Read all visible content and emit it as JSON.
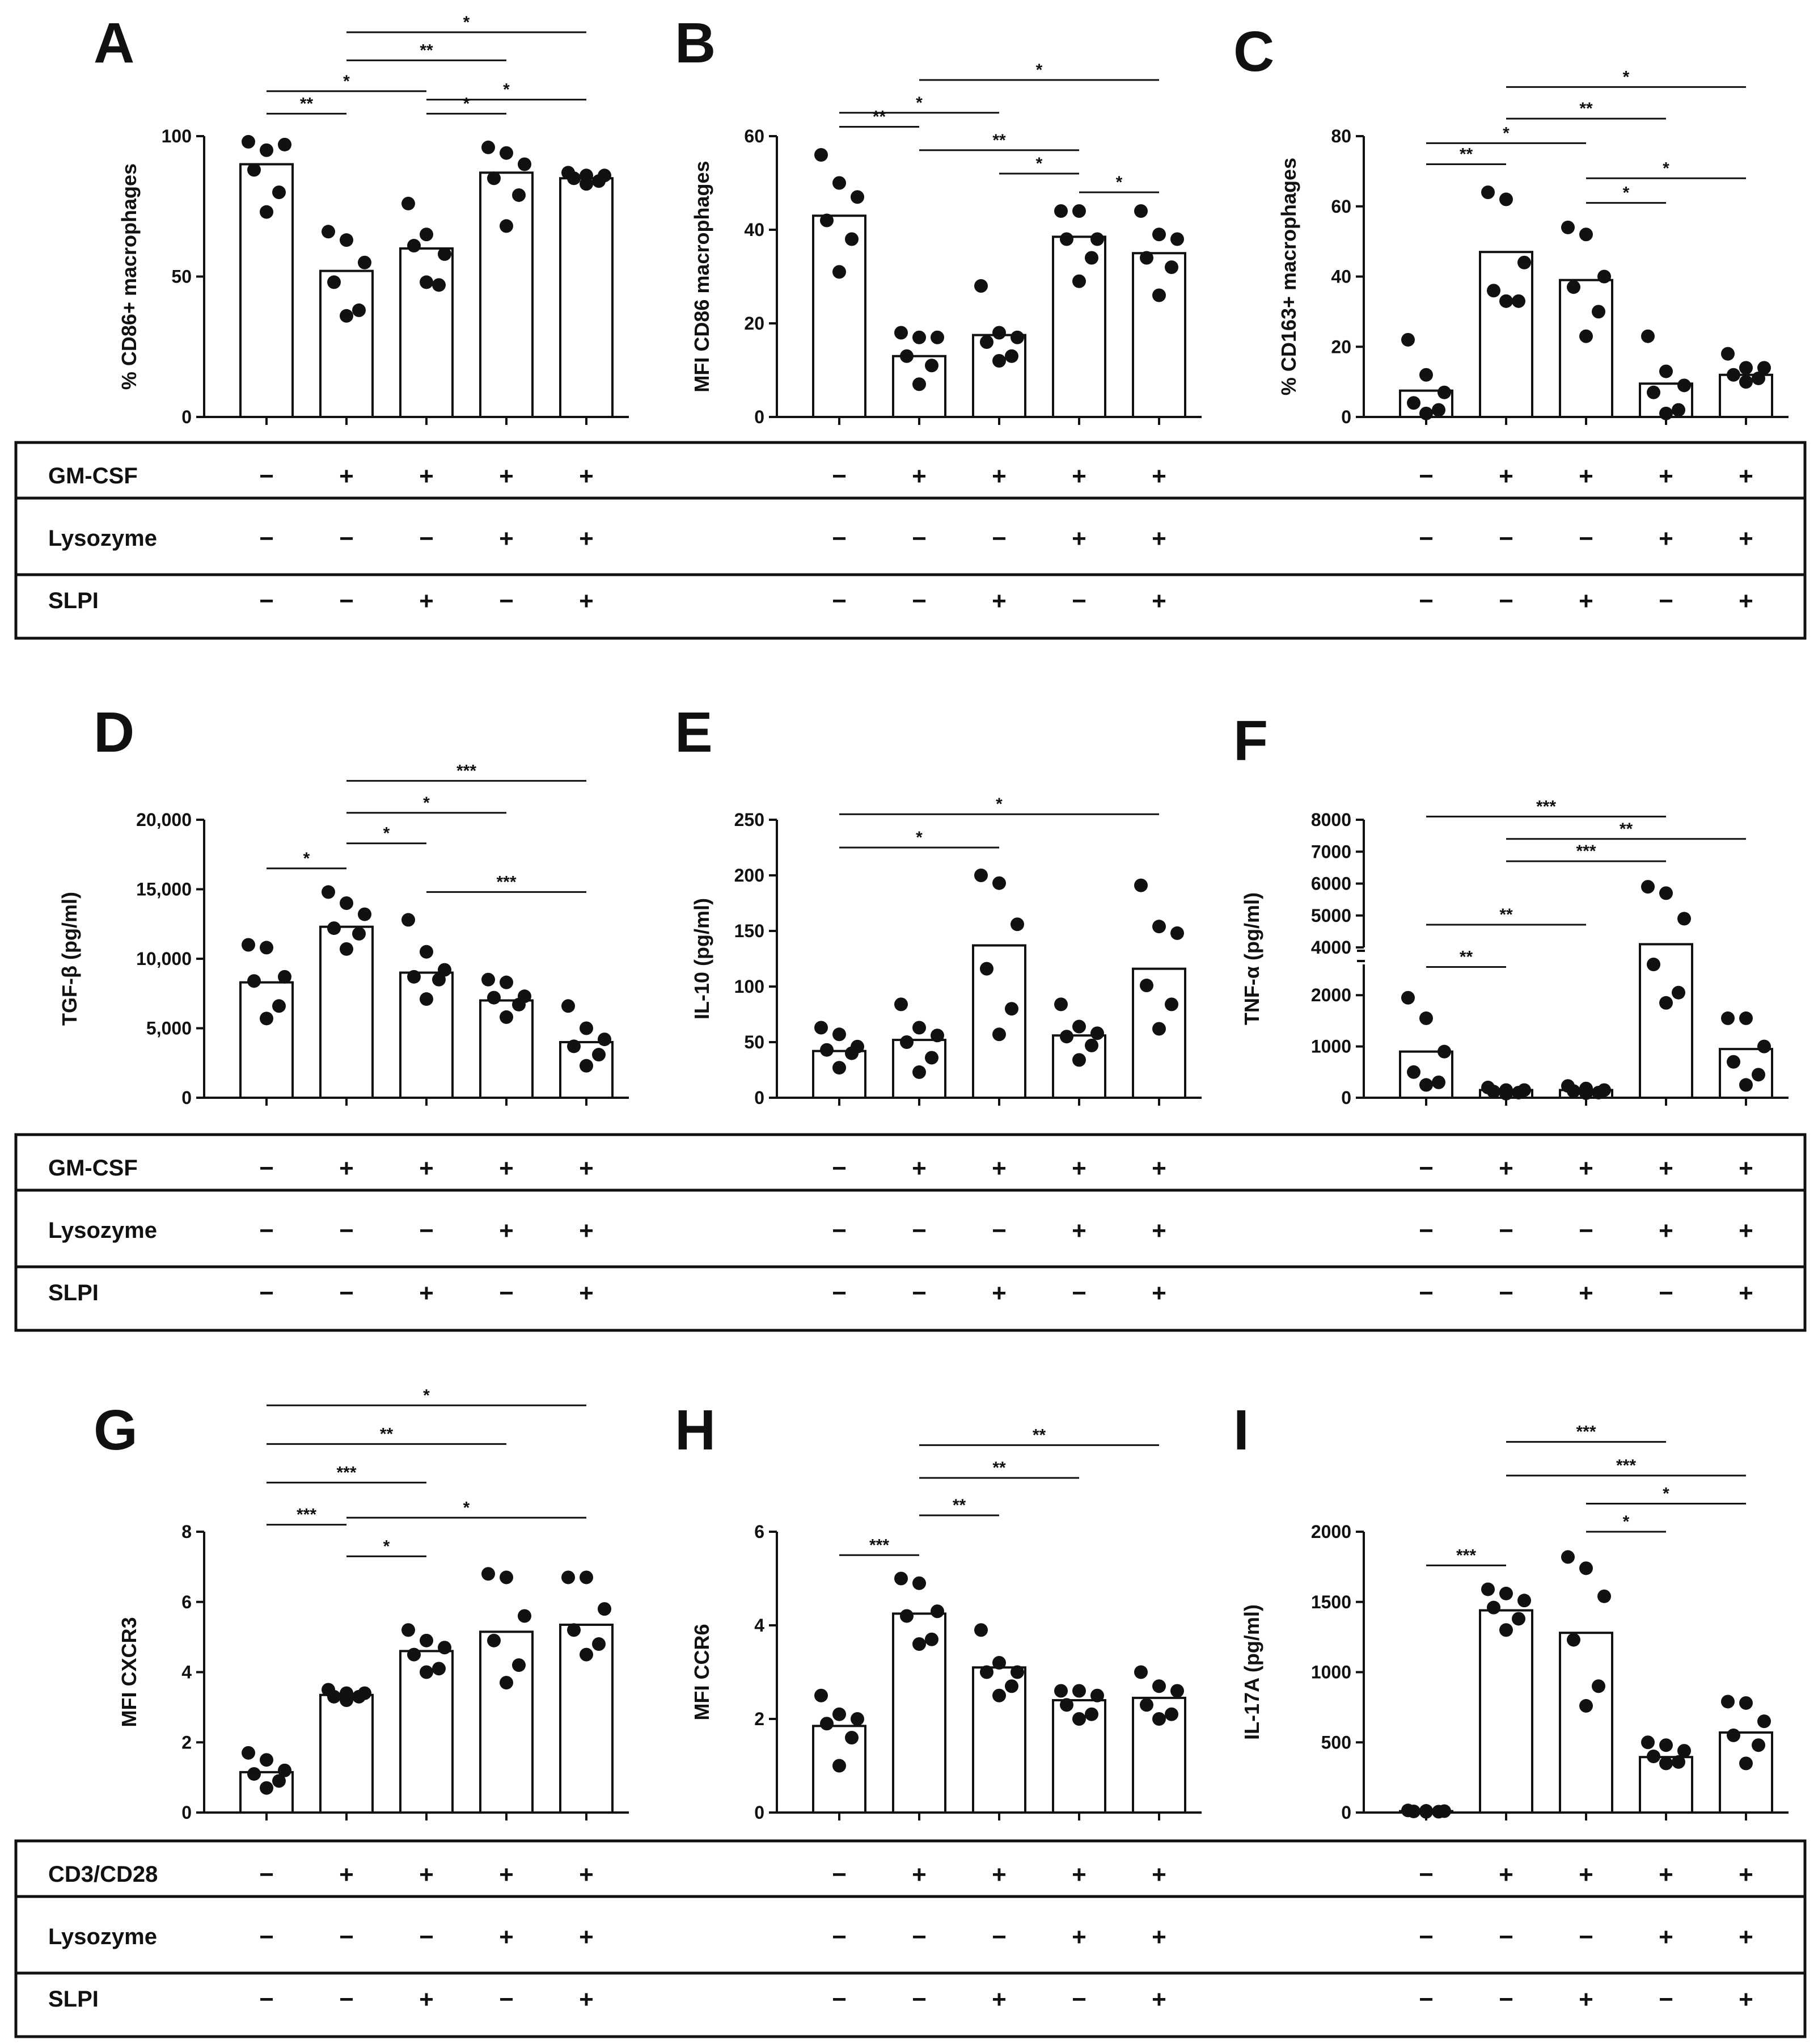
{
  "chart_data": [
    {
      "panel": "A",
      "type": "bar",
      "ylabel": "% CD86+ macrophages",
      "ylim": [
        0,
        100
      ],
      "yticks": [
        0,
        50,
        100
      ],
      "bar_values": [
        90,
        52,
        60,
        87,
        85
      ],
      "points": [
        [
          98,
          95,
          97,
          88,
          80,
          73
        ],
        [
          66,
          63,
          55,
          48,
          38,
          36
        ],
        [
          76,
          65,
          58,
          61,
          47,
          48
        ],
        [
          96,
          94,
          90,
          85,
          79,
          68
        ],
        [
          87,
          86,
          86,
          85,
          84,
          83
        ]
      ],
      "significance": [
        {
          "from": 0,
          "to": 1,
          "label": "**",
          "y": 108
        },
        {
          "from": 0,
          "to": 2,
          "label": "*",
          "y": 116
        },
        {
          "from": 2,
          "to": 3,
          "label": "*",
          "y": 108
        },
        {
          "from": 2,
          "to": 4,
          "label": "*",
          "y": 113
        },
        {
          "from": 1,
          "to": 3,
          "label": "**",
          "y": 127
        },
        {
          "from": 1,
          "to": 4,
          "label": "*",
          "y": 137
        }
      ]
    },
    {
      "panel": "B",
      "type": "bar",
      "ylabel": "MFI CD86 macrophages",
      "ylim": [
        0,
        60
      ],
      "yticks": [
        0,
        20,
        40,
        60
      ],
      "bar_values": [
        43,
        13,
        17.5,
        38.5,
        35
      ],
      "points": [
        [
          56,
          50,
          47,
          42,
          38,
          31
        ],
        [
          18,
          17,
          17,
          13,
          11,
          7
        ],
        [
          28,
          18,
          17,
          16,
          13,
          12
        ],
        [
          44,
          44,
          38,
          38,
          34,
          29
        ],
        [
          44,
          39,
          38,
          34,
          32,
          26
        ]
      ],
      "significance": [
        {
          "from": 0,
          "to": 1,
          "label": "**",
          "y": 62
        },
        {
          "from": 0,
          "to": 2,
          "label": "*",
          "y": 65
        },
        {
          "from": 3,
          "to": 4,
          "label": "*",
          "y": 48
        },
        {
          "from": 2,
          "to": 3,
          "label": "*",
          "y": 52
        },
        {
          "from": 1,
          "to": 3,
          "label": "**",
          "y": 57
        },
        {
          "from": 1,
          "to": 4,
          "label": "*",
          "y": 72
        }
      ]
    },
    {
      "panel": "C",
      "type": "bar",
      "ylabel": "% CD163+ macrophages",
      "ylim": [
        0,
        80
      ],
      "yticks": [
        0,
        20,
        40,
        60,
        80
      ],
      "bar_values": [
        7.5,
        47,
        39,
        9.5,
        12
      ],
      "points": [
        [
          22,
          12,
          7,
          4,
          2,
          1
        ],
        [
          64,
          62,
          44,
          36,
          33,
          33
        ],
        [
          54,
          52,
          40,
          37,
          30,
          23
        ],
        [
          23,
          13,
          9,
          7,
          2,
          1
        ],
        [
          18,
          14,
          14,
          12,
          11,
          10
        ]
      ],
      "significance": [
        {
          "from": 0,
          "to": 1,
          "label": "**",
          "y": 72
        },
        {
          "from": 0,
          "to": 2,
          "label": "*",
          "y": 78
        },
        {
          "from": 2,
          "to": 3,
          "label": "*",
          "y": 61
        },
        {
          "from": 2,
          "to": 4,
          "label": "*",
          "y": 68
        },
        {
          "from": 1,
          "to": 3,
          "label": "**",
          "y": 85
        },
        {
          "from": 1,
          "to": 4,
          "label": "*",
          "y": 94
        }
      ]
    },
    {
      "panel": "D",
      "type": "bar",
      "ylabel": "TGF-β (pg/ml)",
      "ylim": [
        0,
        20000
      ],
      "yticks": [
        0,
        5000,
        10000,
        15000,
        20000
      ],
      "ytick_labels": [
        "0",
        "5,000",
        "10,000",
        "15,000",
        "20,000"
      ],
      "bar_values": [
        8300,
        12300,
        9000,
        7000,
        4000
      ],
      "points": [
        [
          11000,
          10800,
          8700,
          8400,
          6600,
          5700
        ],
        [
          14800,
          14000,
          13200,
          12200,
          11800,
          10700
        ],
        [
          12800,
          10500,
          9200,
          8700,
          8500,
          7100
        ],
        [
          8500,
          8300,
          7300,
          7200,
          6700,
          5800
        ],
        [
          6600,
          5000,
          4200,
          3700,
          3100,
          2300
        ]
      ],
      "significance": [
        {
          "from": 0,
          "to": 1,
          "label": "*",
          "y": 16500
        },
        {
          "from": 1,
          "to": 2,
          "label": "*",
          "y": 18300
        },
        {
          "from": 1,
          "to": 3,
          "label": "*",
          "y": 20500
        },
        {
          "from": 1,
          "to": 4,
          "label": "***",
          "y": 22800
        },
        {
          "from": 2,
          "to": 4,
          "label": "***",
          "y": 14800
        }
      ]
    },
    {
      "panel": "E",
      "type": "bar",
      "ylabel": "IL-10 (pg/ml)",
      "ylim": [
        0,
        250
      ],
      "yticks": [
        0,
        50,
        100,
        150,
        200,
        250
      ],
      "bar_values": [
        42,
        52,
        137,
        56,
        116
      ],
      "points": [
        [
          63,
          57,
          46,
          43,
          40,
          27
        ],
        [
          84,
          63,
          56,
          50,
          36,
          23
        ],
        [
          200,
          193,
          156,
          116,
          80,
          57
        ],
        [
          84,
          64,
          58,
          55,
          47,
          34
        ],
        [
          191,
          154,
          148,
          101,
          84,
          62
        ]
      ],
      "significance": [
        {
          "from": 0,
          "to": 2,
          "label": "*",
          "y": 225
        },
        {
          "from": 0,
          "to": 4,
          "label": "*",
          "y": 255
        }
      ]
    },
    {
      "panel": "F",
      "type": "bar",
      "ylabel": "TNF-α (pg/ml)",
      "broken_axis": true,
      "lower_ylim": [
        0,
        2600
      ],
      "lower_yticks": [
        0,
        1000,
        2000
      ],
      "upper_ylim": [
        4000,
        8000
      ],
      "upper_yticks": [
        4000,
        5000,
        6000,
        7000,
        8000
      ],
      "bar_values": [
        900,
        150,
        150,
        4100,
        950
      ],
      "points": [
        [
          1950,
          1550,
          900,
          500,
          300,
          250
        ],
        [
          200,
          150,
          150,
          120,
          100,
          80
        ],
        [
          230,
          180,
          150,
          130,
          100,
          90
        ],
        [
          5900,
          5700,
          4900,
          3900,
          2050,
          1850
        ],
        [
          1550,
          1550,
          1000,
          700,
          450,
          250
        ]
      ],
      "significance": [
        {
          "from": 0,
          "to": 1,
          "label": "**",
          "bracket": "lower",
          "y": 2550
        },
        {
          "from": 0,
          "to": 2,
          "label": "**",
          "bracket": "upper",
          "y": 4000
        },
        {
          "from": 1,
          "to": 3,
          "label": "***",
          "bracket": "upper",
          "y": 6700
        },
        {
          "from": 1,
          "to": 4,
          "label": "**",
          "bracket": "upper",
          "y": 7400
        },
        {
          "from": 0,
          "to": 3,
          "label": "***",
          "bracket": "upper",
          "y": 8100
        }
      ]
    },
    {
      "panel": "G",
      "type": "bar",
      "ylabel": "MFI CXCR3",
      "ylim": [
        0,
        8
      ],
      "yticks": [
        0,
        2,
        4,
        6,
        8
      ],
      "bar_values": [
        1.15,
        3.35,
        4.6,
        5.15,
        5.35
      ],
      "points": [
        [
          1.7,
          1.5,
          1.2,
          1.1,
          0.9,
          0.7
        ],
        [
          3.5,
          3.4,
          3.4,
          3.3,
          3.3,
          3.2
        ],
        [
          5.2,
          4.9,
          4.7,
          4.5,
          4.1,
          4.0
        ],
        [
          6.8,
          6.7,
          5.6,
          4.9,
          4.2,
          3.7
        ],
        [
          6.7,
          6.7,
          5.8,
          5.2,
          4.8,
          4.5
        ]
      ],
      "significance": [
        {
          "from": 0,
          "to": 1,
          "label": "***",
          "y": 8.2
        },
        {
          "from": 1,
          "to": 2,
          "label": "*",
          "y": 7.3
        },
        {
          "from": 0,
          "to": 2,
          "label": "***",
          "y": 9.4
        },
        {
          "from": 1,
          "to": 4,
          "label": "*",
          "y": 8.4
        },
        {
          "from": 0,
          "to": 3,
          "label": "**",
          "y": 10.5
        },
        {
          "from": 0,
          "to": 4,
          "label": "*",
          "y": 11.6
        }
      ]
    },
    {
      "panel": "H",
      "type": "bar",
      "ylabel": "MFI CCR6",
      "ylim": [
        0,
        6
      ],
      "yticks": [
        0,
        2,
        4,
        6
      ],
      "bar_values": [
        1.85,
        4.25,
        3.1,
        2.4,
        2.45
      ],
      "points": [
        [
          2.5,
          2.1,
          2.0,
          1.9,
          1.6,
          1.0
        ],
        [
          5.0,
          4.9,
          4.3,
          4.2,
          3.7,
          3.6
        ],
        [
          3.9,
          3.2,
          3.0,
          3.0,
          2.7,
          2.5
        ],
        [
          2.6,
          2.6,
          2.5,
          2.3,
          2.1,
          2.0
        ],
        [
          3.0,
          2.7,
          2.6,
          2.3,
          2.1,
          2.0
        ]
      ],
      "significance": [
        {
          "from": 0,
          "to": 1,
          "label": "***",
          "y": 5.5
        },
        {
          "from": 1,
          "to": 2,
          "label": "**",
          "y": 6.35
        },
        {
          "from": 1,
          "to": 3,
          "label": "**",
          "y": 7.15
        },
        {
          "from": 1,
          "to": 4,
          "label": "**",
          "y": 7.85
        }
      ]
    },
    {
      "panel": "I",
      "type": "bar",
      "ylabel": "IL-17A (pg/ml)",
      "ylim": [
        0,
        2000
      ],
      "yticks": [
        0,
        500,
        1000,
        1500,
        2000
      ],
      "bar_values": [
        10,
        1440,
        1280,
        395,
        570
      ],
      "points": [
        [
          15,
          12,
          10,
          8,
          6,
          5
        ],
        [
          1590,
          1560,
          1510,
          1460,
          1380,
          1300
        ],
        [
          1820,
          1740,
          1540,
          1230,
          900,
          760
        ],
        [
          500,
          480,
          440,
          400,
          360,
          350
        ],
        [
          790,
          780,
          650,
          550,
          480,
          350
        ]
      ],
      "significance": [
        {
          "from": 0,
          "to": 1,
          "label": "***",
          "y": 1760
        },
        {
          "from": 2,
          "to": 3,
          "label": "*",
          "y": 2000
        },
        {
          "from": 2,
          "to": 4,
          "label": "*",
          "y": 2200
        },
        {
          "from": 1,
          "to": 4,
          "label": "***",
          "y": 2400
        },
        {
          "from": 1,
          "to": 3,
          "label": "***",
          "y": 2640
        }
      ]
    }
  ],
  "condition_tables": [
    {
      "rows": [
        {
          "label": "GM-CSF",
          "marks": [
            "−",
            "+",
            "+",
            "+",
            "+"
          ]
        },
        {
          "label": "Lysozyme",
          "marks": [
            "−",
            "−",
            "−",
            "+",
            "+"
          ]
        },
        {
          "label": "SLPI",
          "marks": [
            "−",
            "−",
            "+",
            "−",
            "+"
          ]
        }
      ]
    },
    {
      "rows": [
        {
          "label": "GM-CSF",
          "marks": [
            "−",
            "+",
            "+",
            "+",
            "+"
          ]
        },
        {
          "label": "Lysozyme",
          "marks": [
            "−",
            "−",
            "−",
            "+",
            "+"
          ]
        },
        {
          "label": "SLPI",
          "marks": [
            "−",
            "−",
            "+",
            "−",
            "+"
          ]
        }
      ]
    },
    {
      "rows": [
        {
          "label": "CD3/CD28",
          "marks": [
            "−",
            "+",
            "+",
            "+",
            "+"
          ]
        },
        {
          "label": "Lysozyme",
          "marks": [
            "−",
            "−",
            "−",
            "+",
            "+"
          ]
        },
        {
          "label": "SLPI",
          "marks": [
            "−",
            "−",
            "+",
            "−",
            "+"
          ]
        }
      ]
    }
  ]
}
